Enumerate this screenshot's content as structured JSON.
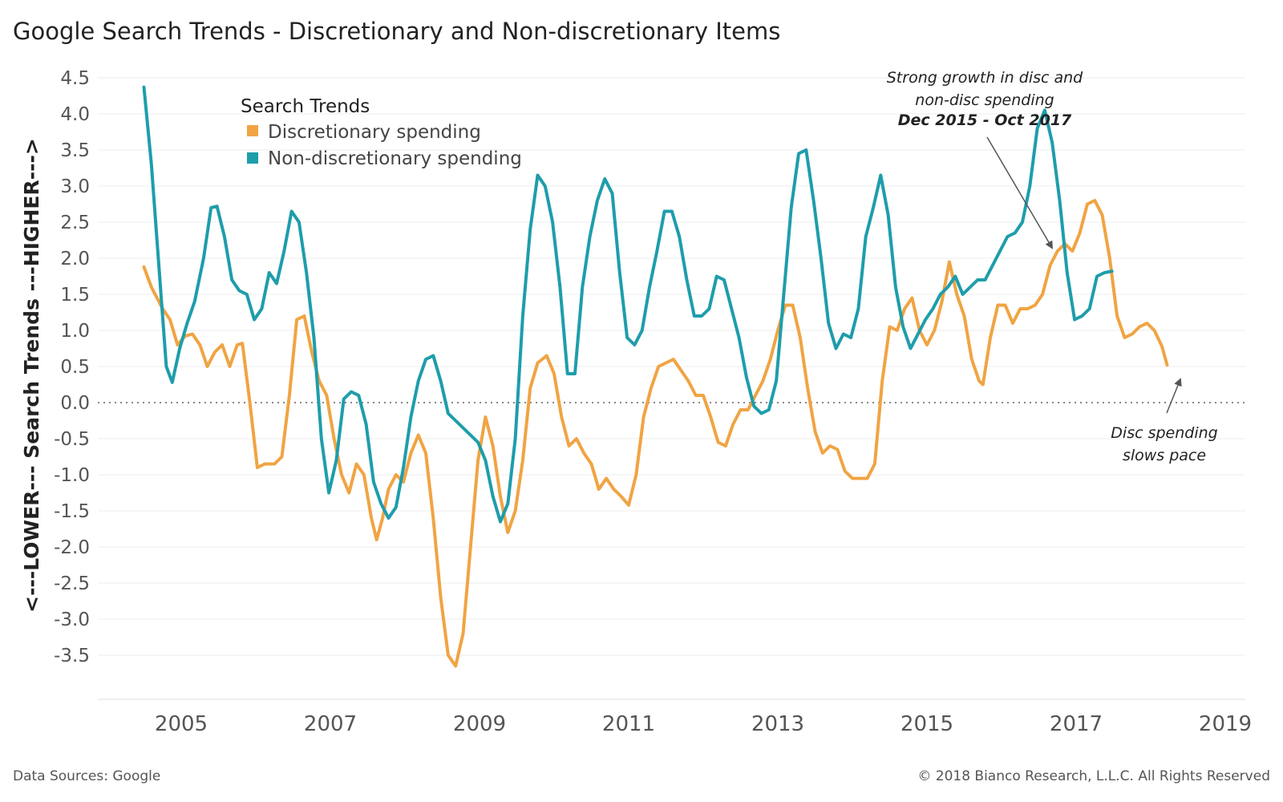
{
  "title": "Google Search Trends - Discretionary and Non-discretionary Items",
  "footer": {
    "source": "Data Sources: Google",
    "copyright": "© 2018 Bianco Research, L.L.C. All Rights Reserved"
  },
  "chart_data": {
    "type": "line",
    "title": "Google Search Trends - Discretionary and Non-discretionary Items",
    "ylabel": "<---LOWER--- Search Trends ---HIGHER--->",
    "xlabel": "",
    "ylim": [
      -4.0,
      4.6
    ],
    "xlim": [
      2004.1,
      2019.1
    ],
    "y_ticks": [
      4.5,
      4.0,
      3.5,
      3.0,
      2.5,
      2.0,
      1.5,
      1.0,
      0.5,
      0.0,
      -0.5,
      -1.0,
      -1.5,
      -2.0,
      -2.5,
      -3.0,
      -3.5
    ],
    "y_tick_labels": [
      "4.5",
      "4.0",
      "3.5",
      "3.0",
      "2.5",
      "2.0",
      "1.5",
      "1.0",
      "0.5",
      "0.0",
      "-0.5",
      "-1.0",
      "-1.5",
      "-2.0",
      "-2.5",
      "-3.0",
      "-3.5"
    ],
    "x_ticks": [
      2005,
      2007,
      2009,
      2011,
      2013,
      2015,
      2017,
      2019
    ],
    "x_tick_labels": [
      "2005",
      "2007",
      "2009",
      "2011",
      "2013",
      "2015",
      "2017",
      "2019"
    ],
    "zero_line": "dotted",
    "legend": {
      "title": "Search Trends",
      "placement": "top-left"
    },
    "series": [
      {
        "name": "Discretionary spending",
        "color": "#F0A443",
        "points": [
          [
            2004.5,
            1.88
          ],
          [
            2004.6,
            1.6
          ],
          [
            2004.75,
            1.3
          ],
          [
            2004.85,
            1.15
          ],
          [
            2004.95,
            0.8
          ],
          [
            2005.05,
            0.92
          ],
          [
            2005.15,
            0.95
          ],
          [
            2005.25,
            0.8
          ],
          [
            2005.35,
            0.5
          ],
          [
            2005.45,
            0.7
          ],
          [
            2005.55,
            0.8
          ],
          [
            2005.65,
            0.5
          ],
          [
            2005.75,
            0.8
          ],
          [
            2005.82,
            0.82
          ],
          [
            2005.92,
            0.0
          ],
          [
            2006.02,
            -0.9
          ],
          [
            2006.12,
            -0.85
          ],
          [
            2006.25,
            -0.85
          ],
          [
            2006.35,
            -0.75
          ],
          [
            2006.45,
            0.1
          ],
          [
            2006.55,
            1.15
          ],
          [
            2006.65,
            1.2
          ],
          [
            2006.75,
            0.7
          ],
          [
            2006.85,
            0.3
          ],
          [
            2006.95,
            0.1
          ],
          [
            2007.05,
            -0.5
          ],
          [
            2007.15,
            -1.0
          ],
          [
            2007.25,
            -1.25
          ],
          [
            2007.35,
            -0.85
          ],
          [
            2007.45,
            -1.0
          ],
          [
            2007.55,
            -1.6
          ],
          [
            2007.62,
            -1.9
          ],
          [
            2007.7,
            -1.6
          ],
          [
            2007.78,
            -1.2
          ],
          [
            2007.88,
            -1.0
          ],
          [
            2007.98,
            -1.1
          ],
          [
            2008.08,
            -0.7
          ],
          [
            2008.18,
            -0.45
          ],
          [
            2008.28,
            -0.7
          ],
          [
            2008.38,
            -1.6
          ],
          [
            2008.48,
            -2.7
          ],
          [
            2008.58,
            -3.5
          ],
          [
            2008.68,
            -3.65
          ],
          [
            2008.78,
            -3.2
          ],
          [
            2008.88,
            -2.0
          ],
          [
            2008.98,
            -0.8
          ],
          [
            2009.08,
            -0.2
          ],
          [
            2009.18,
            -0.6
          ],
          [
            2009.28,
            -1.3
          ],
          [
            2009.38,
            -1.8
          ],
          [
            2009.48,
            -1.5
          ],
          [
            2009.58,
            -0.8
          ],
          [
            2009.68,
            0.2
          ],
          [
            2009.78,
            0.55
          ],
          [
            2009.9,
            0.65
          ],
          [
            2010.0,
            0.4
          ],
          [
            2010.1,
            -0.2
          ],
          [
            2010.2,
            -0.6
          ],
          [
            2010.3,
            -0.5
          ],
          [
            2010.4,
            -0.7
          ],
          [
            2010.5,
            -0.85
          ],
          [
            2010.6,
            -1.2
          ],
          [
            2010.7,
            -1.05
          ],
          [
            2010.8,
            -1.2
          ],
          [
            2010.9,
            -1.3
          ],
          [
            2011.0,
            -1.42
          ],
          [
            2011.1,
            -1.0
          ],
          [
            2011.2,
            -0.2
          ],
          [
            2011.3,
            0.2
          ],
          [
            2011.4,
            0.5
          ],
          [
            2011.5,
            0.55
          ],
          [
            2011.6,
            0.6
          ],
          [
            2011.7,
            0.45
          ],
          [
            2011.8,
            0.3
          ],
          [
            2011.9,
            0.1
          ],
          [
            2012.0,
            0.1
          ],
          [
            2012.1,
            -0.2
          ],
          [
            2012.2,
            -0.55
          ],
          [
            2012.3,
            -0.6
          ],
          [
            2012.4,
            -0.3
          ],
          [
            2012.5,
            -0.1
          ],
          [
            2012.6,
            -0.1
          ],
          [
            2012.7,
            0.1
          ],
          [
            2012.8,
            0.3
          ],
          [
            2012.9,
            0.6
          ],
          [
            2013.0,
            1.0
          ],
          [
            2013.1,
            1.35
          ],
          [
            2013.2,
            1.35
          ],
          [
            2013.3,
            0.9
          ],
          [
            2013.4,
            0.2
          ],
          [
            2013.5,
            -0.4
          ],
          [
            2013.6,
            -0.7
          ],
          [
            2013.7,
            -0.6
          ],
          [
            2013.8,
            -0.65
          ],
          [
            2013.9,
            -0.95
          ],
          [
            2014.0,
            -1.05
          ],
          [
            2014.1,
            -1.05
          ],
          [
            2014.2,
            -1.05
          ],
          [
            2014.3,
            -0.85
          ],
          [
            2014.4,
            0.3
          ],
          [
            2014.5,
            1.05
          ],
          [
            2014.6,
            1.0
          ],
          [
            2014.7,
            1.3
          ],
          [
            2014.8,
            1.45
          ],
          [
            2014.9,
            1.0
          ],
          [
            2015.0,
            0.8
          ],
          [
            2015.1,
            1.0
          ],
          [
            2015.2,
            1.4
          ],
          [
            2015.3,
            1.95
          ],
          [
            2015.4,
            1.5
          ],
          [
            2015.5,
            1.2
          ],
          [
            2015.6,
            0.6
          ],
          [
            2015.7,
            0.3
          ],
          [
            2015.75,
            0.25
          ],
          [
            2015.85,
            0.9
          ],
          [
            2015.95,
            1.35
          ],
          [
            2016.05,
            1.35
          ],
          [
            2016.15,
            1.1
          ],
          [
            2016.25,
            1.3
          ],
          [
            2016.35,
            1.3
          ],
          [
            2016.45,
            1.35
          ],
          [
            2016.55,
            1.5
          ],
          [
            2016.65,
            1.9
          ],
          [
            2016.75,
            2.1
          ],
          [
            2016.85,
            2.2
          ],
          [
            2016.95,
            2.1
          ],
          [
            2017.05,
            2.35
          ],
          [
            2017.15,
            2.75
          ],
          [
            2017.25,
            2.8
          ],
          [
            2017.35,
            2.6
          ],
          [
            2017.45,
            2.0
          ],
          [
            2017.55,
            1.2
          ],
          [
            2017.65,
            0.9
          ],
          [
            2017.75,
            0.95
          ],
          [
            2017.85,
            1.05
          ],
          [
            2017.95,
            1.1
          ],
          [
            2018.05,
            1.0
          ],
          [
            2018.15,
            0.78
          ],
          [
            2018.22,
            0.52
          ]
        ]
      },
      {
        "name": "Non-discretionary spending",
        "color": "#1E9DAB",
        "points": [
          [
            2004.5,
            4.37
          ],
          [
            2004.6,
            3.3
          ],
          [
            2004.7,
            1.9
          ],
          [
            2004.8,
            0.5
          ],
          [
            2004.88,
            0.28
          ],
          [
            2004.98,
            0.75
          ],
          [
            2005.08,
            1.1
          ],
          [
            2005.18,
            1.4
          ],
          [
            2005.3,
            2.0
          ],
          [
            2005.4,
            2.7
          ],
          [
            2005.48,
            2.72
          ],
          [
            2005.58,
            2.3
          ],
          [
            2005.68,
            1.7
          ],
          [
            2005.78,
            1.55
          ],
          [
            2005.88,
            1.5
          ],
          [
            2005.98,
            1.15
          ],
          [
            2006.08,
            1.3
          ],
          [
            2006.18,
            1.8
          ],
          [
            2006.28,
            1.65
          ],
          [
            2006.38,
            2.1
          ],
          [
            2006.48,
            2.65
          ],
          [
            2006.58,
            2.5
          ],
          [
            2006.68,
            1.8
          ],
          [
            2006.78,
            0.9
          ],
          [
            2006.88,
            -0.5
          ],
          [
            2006.98,
            -1.25
          ],
          [
            2007.08,
            -0.8
          ],
          [
            2007.18,
            0.05
          ],
          [
            2007.28,
            0.15
          ],
          [
            2007.38,
            0.1
          ],
          [
            2007.48,
            -0.3
          ],
          [
            2007.58,
            -1.1
          ],
          [
            2007.68,
            -1.4
          ],
          [
            2007.78,
            -1.6
          ],
          [
            2007.88,
            -1.45
          ],
          [
            2007.98,
            -0.9
          ],
          [
            2008.08,
            -0.2
          ],
          [
            2008.18,
            0.3
          ],
          [
            2008.28,
            0.6
          ],
          [
            2008.38,
            0.65
          ],
          [
            2008.48,
            0.3
          ],
          [
            2008.58,
            -0.15
          ],
          [
            2008.68,
            -0.25
          ],
          [
            2008.78,
            -0.35
          ],
          [
            2008.88,
            -0.45
          ],
          [
            2008.98,
            -0.55
          ],
          [
            2009.08,
            -0.8
          ],
          [
            2009.18,
            -1.3
          ],
          [
            2009.28,
            -1.65
          ],
          [
            2009.38,
            -1.4
          ],
          [
            2009.48,
            -0.5
          ],
          [
            2009.58,
            1.2
          ],
          [
            2009.68,
            2.4
          ],
          [
            2009.78,
            3.15
          ],
          [
            2009.88,
            3.0
          ],
          [
            2009.98,
            2.5
          ],
          [
            2010.08,
            1.6
          ],
          [
            2010.18,
            0.4
          ],
          [
            2010.28,
            0.4
          ],
          [
            2010.38,
            1.6
          ],
          [
            2010.48,
            2.3
          ],
          [
            2010.58,
            2.8
          ],
          [
            2010.68,
            3.1
          ],
          [
            2010.78,
            2.9
          ],
          [
            2010.88,
            1.8
          ],
          [
            2010.98,
            0.9
          ],
          [
            2011.08,
            0.8
          ],
          [
            2011.18,
            1.0
          ],
          [
            2011.28,
            1.6
          ],
          [
            2011.38,
            2.1
          ],
          [
            2011.48,
            2.65
          ],
          [
            2011.58,
            2.65
          ],
          [
            2011.68,
            2.3
          ],
          [
            2011.78,
            1.7
          ],
          [
            2011.88,
            1.2
          ],
          [
            2011.98,
            1.2
          ],
          [
            2012.08,
            1.3
          ],
          [
            2012.18,
            1.75
          ],
          [
            2012.28,
            1.7
          ],
          [
            2012.38,
            1.3
          ],
          [
            2012.48,
            0.9
          ],
          [
            2012.58,
            0.35
          ],
          [
            2012.68,
            -0.05
          ],
          [
            2012.78,
            -0.15
          ],
          [
            2012.88,
            -0.1
          ],
          [
            2012.98,
            0.3
          ],
          [
            2013.08,
            1.5
          ],
          [
            2013.18,
            2.7
          ],
          [
            2013.28,
            3.45
          ],
          [
            2013.38,
            3.5
          ],
          [
            2013.48,
            2.8
          ],
          [
            2013.58,
            2.0
          ],
          [
            2013.68,
            1.1
          ],
          [
            2013.78,
            0.75
          ],
          [
            2013.88,
            0.95
          ],
          [
            2013.98,
            0.9
          ],
          [
            2014.08,
            1.3
          ],
          [
            2014.18,
            2.3
          ],
          [
            2014.28,
            2.7
          ],
          [
            2014.38,
            3.15
          ],
          [
            2014.48,
            2.6
          ],
          [
            2014.58,
            1.6
          ],
          [
            2014.68,
            1.05
          ],
          [
            2014.78,
            0.75
          ],
          [
            2014.88,
            0.95
          ],
          [
            2014.98,
            1.15
          ],
          [
            2015.08,
            1.3
          ],
          [
            2015.18,
            1.5
          ],
          [
            2015.28,
            1.6
          ],
          [
            2015.38,
            1.75
          ],
          [
            2015.48,
            1.5
          ],
          [
            2015.58,
            1.6
          ],
          [
            2015.68,
            1.7
          ],
          [
            2015.78,
            1.7
          ],
          [
            2015.88,
            1.9
          ],
          [
            2015.98,
            2.1
          ],
          [
            2016.08,
            2.3
          ],
          [
            2016.18,
            2.35
          ],
          [
            2016.28,
            2.5
          ],
          [
            2016.38,
            3.0
          ],
          [
            2016.48,
            3.8
          ],
          [
            2016.58,
            4.05
          ],
          [
            2016.68,
            3.6
          ],
          [
            2016.78,
            2.8
          ],
          [
            2016.88,
            1.8
          ],
          [
            2016.98,
            1.15
          ],
          [
            2017.08,
            1.2
          ],
          [
            2017.18,
            1.3
          ],
          [
            2017.28,
            1.75
          ],
          [
            2017.38,
            1.8
          ],
          [
            2017.48,
            1.82
          ]
        ]
      }
    ],
    "annotations": [
      {
        "lines": [
          "Strong growth in disc and",
          "non-disc spending"
        ],
        "bold_line": "Dec 2015 - Oct 2017"
      },
      {
        "lines": [
          "Disc spending",
          "slows pace"
        ]
      }
    ]
  }
}
